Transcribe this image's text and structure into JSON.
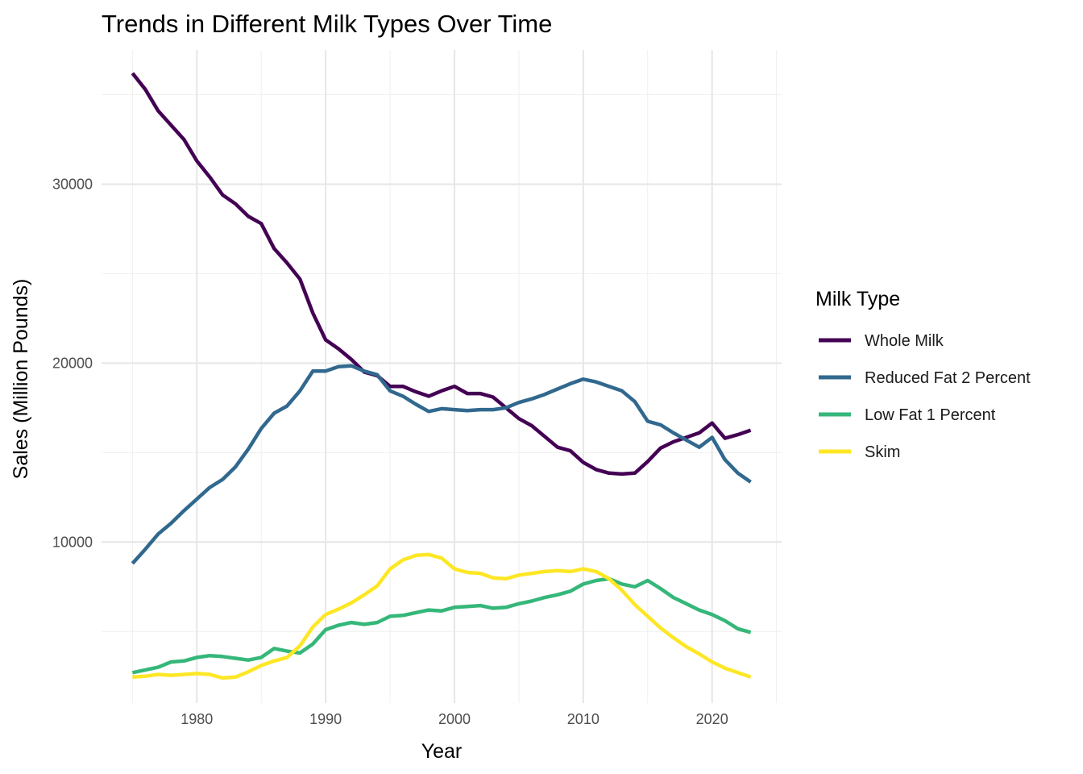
{
  "chart_data": {
    "type": "line",
    "title": "Trends in Different Milk Types Over Time",
    "xlabel": "Year",
    "ylabel": "Sales (Million Pounds)",
    "xlim": [
      1972.6,
      2025.4
    ],
    "ylim": [
      1000,
      37500
    ],
    "x_ticks": [
      1980,
      1990,
      2000,
      2010,
      2020
    ],
    "y_ticks": [
      10000,
      20000,
      30000
    ],
    "grid": true,
    "legend": {
      "title": "Milk Type",
      "position": "right"
    },
    "x": [
      1975,
      1976,
      1977,
      1978,
      1979,
      1980,
      1981,
      1982,
      1983,
      1984,
      1985,
      1986,
      1987,
      1988,
      1989,
      1990,
      1991,
      1992,
      1993,
      1994,
      1995,
      1996,
      1997,
      1998,
      1999,
      2000,
      2001,
      2002,
      2003,
      2004,
      2005,
      2006,
      2007,
      2008,
      2009,
      2010,
      2011,
      2012,
      2013,
      2014,
      2015,
      2016,
      2017,
      2018,
      2019,
      2020,
      2021,
      2022,
      2023
    ],
    "series": [
      {
        "name": "Whole Milk",
        "color": "#440154",
        "values": [
          36200,
          35300,
          34100,
          33300,
          32500,
          31300,
          30400,
          29400,
          28900,
          28200,
          27800,
          26400,
          25600,
          24700,
          22800,
          21300,
          20800,
          20200,
          19500,
          19300,
          18700,
          18700,
          18400,
          18150,
          18450,
          18700,
          18300,
          18300,
          18100,
          17500,
          16900,
          16500,
          15900,
          15300,
          15100,
          14450,
          14050,
          13850,
          13800,
          13850,
          14500,
          15250,
          15600,
          15850,
          16100,
          16650,
          15800,
          16000,
          16250
        ]
      },
      {
        "name": "Reduced Fat 2 Percent",
        "color": "#31688e",
        "values": [
          8800,
          9600,
          10450,
          11050,
          11750,
          12400,
          13050,
          13500,
          14200,
          15200,
          16350,
          17200,
          17600,
          18450,
          19550,
          19550,
          19800,
          19850,
          19550,
          19350,
          18450,
          18150,
          17700,
          17300,
          17450,
          17400,
          17350,
          17400,
          17400,
          17500,
          17800,
          18000,
          18250,
          18550,
          18850,
          19100,
          18950,
          18700,
          18450,
          17850,
          16750,
          16550,
          16100,
          15700,
          15300,
          15850,
          14600,
          13850,
          13350
        ]
      },
      {
        "name": "Low Fat 1 Percent",
        "color": "#35b779",
        "values": [
          2700,
          2850,
          3000,
          3300,
          3350,
          3550,
          3650,
          3600,
          3500,
          3400,
          3550,
          4050,
          3900,
          3800,
          4300,
          5100,
          5350,
          5500,
          5400,
          5500,
          5850,
          5900,
          6050,
          6200,
          6150,
          6350,
          6400,
          6450,
          6300,
          6350,
          6550,
          6700,
          6900,
          7050,
          7250,
          7650,
          7850,
          7950,
          7650,
          7500,
          7850,
          7400,
          6900,
          6550,
          6200,
          5950,
          5600,
          5150,
          4950
        ]
      },
      {
        "name": "Skim",
        "color": "#fde725",
        "values": [
          2450,
          2500,
          2600,
          2550,
          2600,
          2650,
          2600,
          2400,
          2450,
          2750,
          3100,
          3350,
          3550,
          4200,
          5250,
          5950,
          6250,
          6600,
          7050,
          7550,
          8500,
          9000,
          9250,
          9300,
          9100,
          8500,
          8300,
          8250,
          8000,
          7950,
          8150,
          8250,
          8350,
          8400,
          8350,
          8500,
          8350,
          7950,
          7300,
          6500,
          5850,
          5200,
          4650,
          4150,
          3750,
          3300,
          2950,
          2700,
          2450
        ]
      }
    ]
  }
}
